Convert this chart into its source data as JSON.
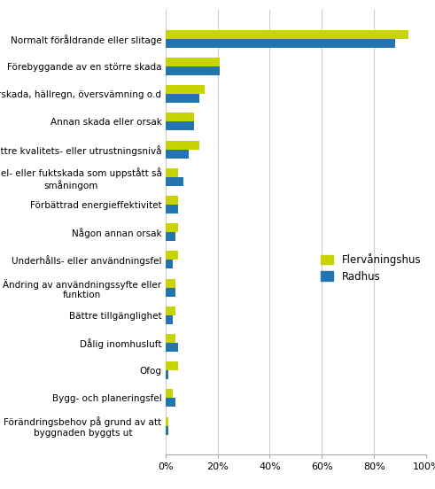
{
  "categories": [
    "Normalt föråldrande eller slitage",
    "Förebyggande av en större skada",
    "Rörskada, hällregn, översvämning o.d",
    "Annan skada eller orsak",
    "Bättre kvalitets- eller utrustningsnivå",
    "Mögel- eller fuktskada som uppstått så\nsmåningom",
    "Förbättrad energieffektivitet",
    "Någon annan orsak",
    "Underhålls- eller användningsfel",
    "Ändring av användningssyfte eller\nfunktion",
    "Bättre tillgänglighet",
    "Dålig inomhusluft",
    "Ofog",
    "Bygg- och planeringsfel",
    "Förändringsbehov på grund av att\nbyggnaden byggts ut"
  ],
  "flervaning": [
    93,
    21,
    15,
    11,
    13,
    5,
    5,
    5,
    5,
    4,
    4,
    4,
    5,
    3,
    1
  ],
  "radhus": [
    88,
    21,
    13,
    11,
    9,
    7,
    5,
    4,
    3,
    4,
    3,
    5,
    1,
    4,
    1
  ],
  "color_flervaning": "#c8d400",
  "color_radhus": "#2474b0",
  "legend_flervaning": "Flervåningshus",
  "legend_radhus": "Radhus",
  "xlim": [
    0,
    100
  ],
  "xticks": [
    0,
    20,
    40,
    60,
    80,
    100
  ],
  "xticklabels": [
    "0%",
    "20%",
    "40%",
    "60%",
    "80%",
    "100%"
  ],
  "bg_color": "#ffffff",
  "grid_color": "#cccccc",
  "bar_height": 0.32,
  "fontsize_labels": 7.5,
  "fontsize_ticks": 8.0,
  "legend_fontsize": 8.5
}
